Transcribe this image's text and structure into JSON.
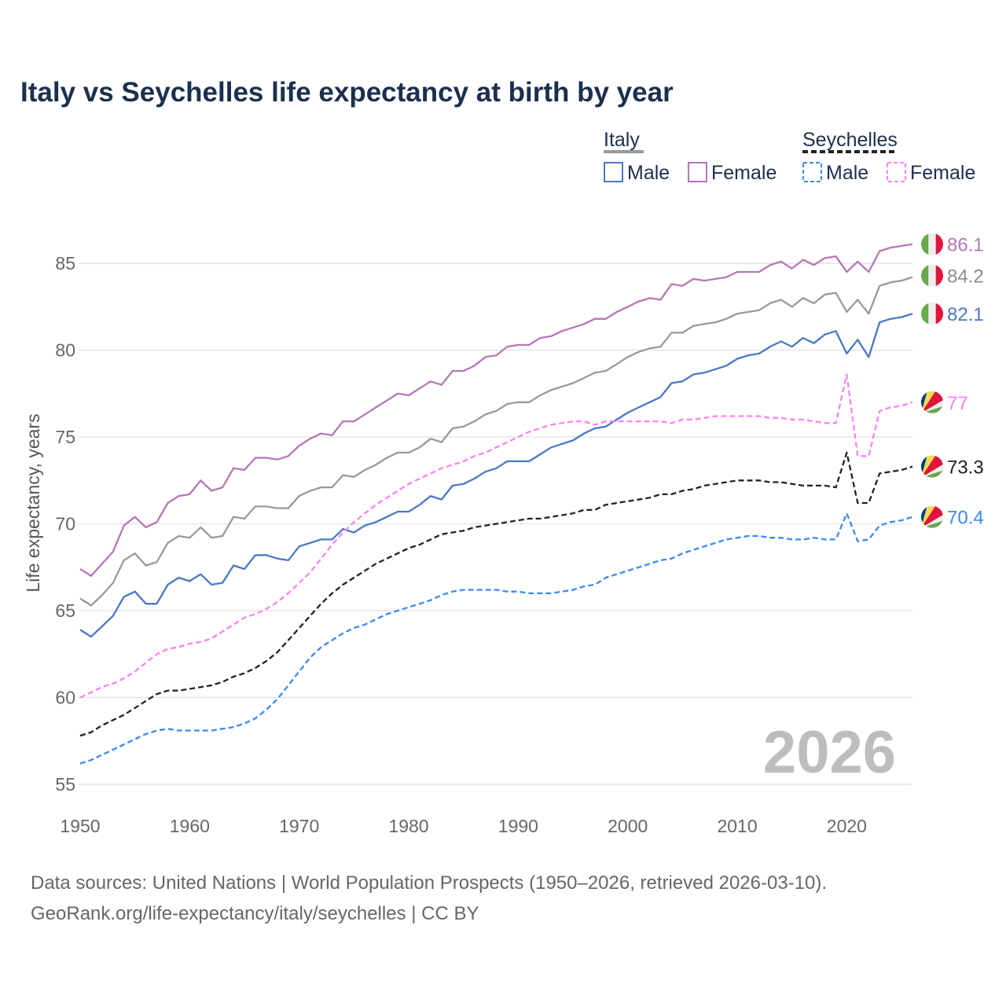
{
  "chart_data": {
    "type": "line",
    "title": "Italy vs Seychelles life expectancy at birth by year",
    "xlabel": "",
    "ylabel": "Life expectancy, years",
    "xlim": [
      1950,
      2026
    ],
    "ylim": [
      55,
      86.5
    ],
    "x_ticks": [
      1950,
      1960,
      1970,
      1980,
      1990,
      2000,
      2010,
      2020
    ],
    "y_ticks": [
      55,
      60,
      65,
      70,
      75,
      80,
      85
    ],
    "grid": true,
    "legend_placement": "top-right",
    "current_year_label": "2026",
    "legend": {
      "groups": [
        {
          "name": "Italy",
          "style": "solid",
          "color": "#999999",
          "items": [
            "Male",
            "Female"
          ],
          "item_colors": [
            "#4a78c6",
            "#b576b8"
          ]
        },
        {
          "name": "Seychelles",
          "style": "dashed",
          "color": "#222222",
          "items": [
            "Male",
            "Female"
          ],
          "item_colors": [
            "#3b88f5",
            "#ff80f5"
          ]
        }
      ]
    },
    "x_start": 1950,
    "series": [
      {
        "name": "Italy Female",
        "country": "Italy",
        "dashed": false,
        "color": "#b576b8",
        "end_label": "86.1",
        "values": [
          67.4,
          67.0,
          67.7,
          68.4,
          69.9,
          70.4,
          69.8,
          70.1,
          71.2,
          71.6,
          71.7,
          72.5,
          71.9,
          72.1,
          73.2,
          73.1,
          73.8,
          73.8,
          73.7,
          73.9,
          74.5,
          74.9,
          75.2,
          75.1,
          75.9,
          75.9,
          76.3,
          76.7,
          77.1,
          77.5,
          77.4,
          77.8,
          78.2,
          78.0,
          78.8,
          78.8,
          79.1,
          79.6,
          79.7,
          80.2,
          80.3,
          80.3,
          80.7,
          80.8,
          81.1,
          81.3,
          81.5,
          81.8,
          81.8,
          82.2,
          82.5,
          82.8,
          83.0,
          82.9,
          83.8,
          83.7,
          84.1,
          84.0,
          84.1,
          84.2,
          84.5,
          84.5,
          84.5,
          84.9,
          85.1,
          84.7,
          85.2,
          84.9,
          85.3,
          85.4,
          84.5,
          85.1,
          84.5,
          85.7,
          85.9,
          86.0,
          86.1
        ]
      },
      {
        "name": "Italy Total",
        "country": "Italy",
        "dashed": false,
        "color": "#999999",
        "end_label": "84.2",
        "values": [
          65.7,
          65.3,
          65.9,
          66.6,
          67.9,
          68.3,
          67.6,
          67.8,
          68.9,
          69.3,
          69.2,
          69.8,
          69.2,
          69.3,
          70.4,
          70.3,
          71.0,
          71.0,
          70.9,
          70.9,
          71.6,
          71.9,
          72.1,
          72.1,
          72.8,
          72.7,
          73.1,
          73.4,
          73.8,
          74.1,
          74.1,
          74.4,
          74.9,
          74.7,
          75.5,
          75.6,
          75.9,
          76.3,
          76.5,
          76.9,
          77.0,
          77.0,
          77.4,
          77.7,
          77.9,
          78.1,
          78.4,
          78.7,
          78.8,
          79.2,
          79.6,
          79.9,
          80.1,
          80.2,
          81.0,
          81.0,
          81.4,
          81.5,
          81.6,
          81.8,
          82.1,
          82.2,
          82.3,
          82.7,
          82.9,
          82.5,
          83.0,
          82.7,
          83.2,
          83.3,
          82.2,
          82.9,
          82.1,
          83.7,
          83.9,
          84.0,
          84.2
        ]
      },
      {
        "name": "Italy Male",
        "country": "Italy",
        "dashed": false,
        "color": "#4a78c6",
        "end_label": "82.1",
        "values": [
          63.9,
          63.5,
          64.1,
          64.7,
          65.8,
          66.1,
          65.4,
          65.4,
          66.5,
          66.9,
          66.7,
          67.1,
          66.5,
          66.6,
          67.6,
          67.4,
          68.2,
          68.2,
          68.0,
          67.9,
          68.7,
          68.9,
          69.1,
          69.1,
          69.7,
          69.5,
          69.9,
          70.1,
          70.4,
          70.7,
          70.7,
          71.1,
          71.6,
          71.4,
          72.2,
          72.3,
          72.6,
          73.0,
          73.2,
          73.6,
          73.6,
          73.6,
          74.0,
          74.4,
          74.6,
          74.8,
          75.2,
          75.5,
          75.6,
          76.0,
          76.4,
          76.7,
          77.0,
          77.3,
          78.1,
          78.2,
          78.6,
          78.7,
          78.9,
          79.1,
          79.5,
          79.7,
          79.8,
          80.2,
          80.5,
          80.2,
          80.7,
          80.4,
          80.9,
          81.1,
          79.8,
          80.6,
          79.6,
          81.6,
          81.8,
          81.9,
          82.1
        ]
      },
      {
        "name": "Seychelles Female",
        "country": "Seychelles",
        "dashed": true,
        "color": "#ff80f5",
        "end_label": "77",
        "values": [
          60.0,
          60.3,
          60.6,
          60.8,
          61.1,
          61.5,
          62.0,
          62.5,
          62.8,
          62.9,
          63.1,
          63.2,
          63.4,
          63.8,
          64.2,
          64.6,
          64.8,
          65.1,
          65.5,
          66.0,
          66.6,
          67.2,
          68.0,
          68.8,
          69.5,
          70.1,
          70.6,
          71.1,
          71.5,
          71.9,
          72.3,
          72.6,
          72.9,
          73.2,
          73.4,
          73.6,
          73.9,
          74.1,
          74.4,
          74.7,
          75.0,
          75.3,
          75.5,
          75.7,
          75.8,
          75.9,
          75.9,
          75.7,
          75.9,
          75.9,
          75.9,
          75.9,
          75.9,
          75.9,
          75.8,
          76.0,
          76.0,
          76.1,
          76.2,
          76.2,
          76.2,
          76.2,
          76.2,
          76.1,
          76.1,
          76.0,
          76.0,
          75.9,
          75.8,
          75.8,
          78.6,
          73.9,
          73.9,
          76.5,
          76.7,
          76.8,
          77.0
        ]
      },
      {
        "name": "Seychelles Total",
        "country": "Seychelles",
        "dashed": true,
        "color": "#222222",
        "end_label": "73.3",
        "values": [
          57.8,
          58.0,
          58.4,
          58.7,
          59.0,
          59.4,
          59.8,
          60.2,
          60.4,
          60.4,
          60.5,
          60.6,
          60.7,
          60.9,
          61.2,
          61.4,
          61.7,
          62.1,
          62.6,
          63.3,
          64.0,
          64.7,
          65.4,
          66.0,
          66.5,
          66.9,
          67.3,
          67.7,
          68.0,
          68.3,
          68.6,
          68.8,
          69.1,
          69.4,
          69.5,
          69.6,
          69.8,
          69.9,
          70.0,
          70.1,
          70.2,
          70.3,
          70.3,
          70.4,
          70.5,
          70.6,
          70.8,
          70.8,
          71.1,
          71.2,
          71.3,
          71.4,
          71.5,
          71.7,
          71.7,
          71.9,
          72.0,
          72.2,
          72.3,
          72.4,
          72.5,
          72.5,
          72.5,
          72.4,
          72.4,
          72.3,
          72.2,
          72.2,
          72.2,
          72.1,
          74.1,
          71.2,
          71.2,
          72.9,
          73.0,
          73.1,
          73.3
        ]
      },
      {
        "name": "Seychelles Male",
        "country": "Seychelles",
        "dashed": true,
        "color": "#3b88f5",
        "end_label": "70.4",
        "values": [
          56.2,
          56.4,
          56.7,
          57.0,
          57.3,
          57.6,
          57.9,
          58.1,
          58.2,
          58.1,
          58.1,
          58.1,
          58.1,
          58.2,
          58.3,
          58.5,
          58.8,
          59.3,
          59.9,
          60.7,
          61.5,
          62.3,
          62.9,
          63.3,
          63.7,
          64.0,
          64.2,
          64.5,
          64.8,
          65.0,
          65.2,
          65.4,
          65.6,
          65.9,
          66.1,
          66.2,
          66.2,
          66.2,
          66.2,
          66.1,
          66.1,
          66.0,
          66.0,
          66.0,
          66.1,
          66.2,
          66.4,
          66.5,
          66.9,
          67.1,
          67.3,
          67.5,
          67.7,
          67.9,
          68.0,
          68.3,
          68.5,
          68.7,
          68.9,
          69.1,
          69.2,
          69.3,
          69.3,
          69.2,
          69.2,
          69.1,
          69.1,
          69.2,
          69.1,
          69.1,
          70.6,
          69.0,
          69.1,
          69.9,
          70.1,
          70.2,
          70.4
        ]
      }
    ]
  },
  "footer": {
    "line1": "Data sources: United Nations | World Population Prospects (1950–2026, retrieved 2026-03-10).",
    "line2": "GeoRank.org/life-expectancy/italy/seychelles | CC BY"
  }
}
